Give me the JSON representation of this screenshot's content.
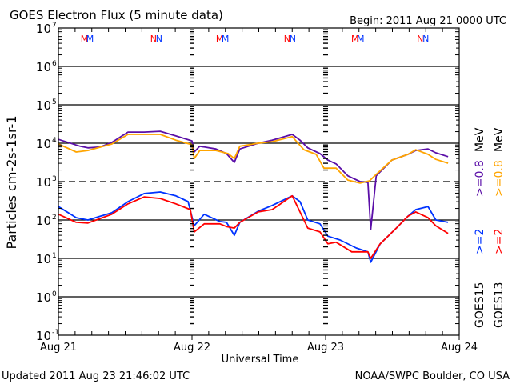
{
  "chart_data": {
    "type": "line",
    "title": "GOES Electron Flux (5 minute data)",
    "begin_label": "Begin: 2011 Aug 21 0000 UTC",
    "xlabel": "Universal Time",
    "ylabel": "Particles cm-2s-1sr-1",
    "y_scale": "log",
    "ylim_log10": [
      -1,
      7
    ],
    "y_ticks": [
      {
        "base": "10",
        "exp": "7"
      },
      {
        "base": "10",
        "exp": "6"
      },
      {
        "base": "10",
        "exp": "5"
      },
      {
        "base": "10",
        "exp": "4"
      },
      {
        "base": "10",
        "exp": "3"
      },
      {
        "base": "10",
        "exp": "2"
      },
      {
        "base": "10",
        "exp": "1"
      },
      {
        "base": "10",
        "exp": "0"
      },
      {
        "base": "10",
        "exp": "-1"
      }
    ],
    "x_range_hours": [
      0,
      72
    ],
    "x_ticks": [
      {
        "hour": 0,
        "label": "Aug 21"
      },
      {
        "hour": 24,
        "label": "Aug 22"
      },
      {
        "hour": 48,
        "label": "Aug 23"
      },
      {
        "hour": 72,
        "label": "Aug 24"
      }
    ],
    "threshold_log10": 3,
    "markers": [
      {
        "hour": 5,
        "label": "MM"
      },
      {
        "hour": 17.5,
        "label": "NN"
      },
      {
        "hour": 29.3,
        "label": "MM"
      },
      {
        "hour": 41.5,
        "label": "NN"
      },
      {
        "hour": 53.6,
        "label": "MM"
      },
      {
        "hour": 65.4,
        "label": "NN"
      }
    ],
    "series": [
      {
        "name": "GOES15 >=0.8 MeV",
        "color": "#5b0fa8",
        "hours": [
          0,
          3.9,
          5.3,
          7.5,
          9.6,
          12.5,
          15.4,
          18.3,
          21.1,
          24,
          24.4,
          25.4,
          28.3,
          30.2,
          31.6,
          32.6,
          35.9,
          38.4,
          42,
          43.4,
          44.8,
          47,
          48.4,
          49.9,
          52,
          54.2,
          55.6,
          56.1,
          57.1,
          59.9,
          62.8,
          64.2,
          66.4,
          67.8,
          70
        ],
        "log10_flux": [
          4.1,
          3.92,
          3.88,
          3.9,
          4.02,
          4.29,
          4.29,
          4.31,
          4.19,
          4.06,
          3.77,
          3.92,
          3.85,
          3.73,
          3.5,
          3.85,
          4.0,
          4.08,
          4.23,
          4.08,
          3.88,
          3.73,
          3.56,
          3.46,
          3.15,
          3.0,
          2.98,
          1.75,
          3.15,
          3.56,
          3.71,
          3.81,
          3.85,
          3.75,
          3.65
        ]
      },
      {
        "name": "GOES13 >=0.8 MeV",
        "color": "#ffa500",
        "hours": [
          0,
          3.2,
          5.3,
          9.6,
          12.5,
          18.3,
          21.1,
          24,
          24.4,
          25.4,
          28.3,
          30.5,
          31.6,
          32.6,
          35.9,
          38.4,
          42,
          44.1,
          46.3,
          47.7,
          49.9,
          52,
          54.2,
          55.9,
          57.1,
          59.9,
          62.8,
          64.2,
          66.4,
          67.8,
          70
        ],
        "log10_flux": [
          3.98,
          3.77,
          3.81,
          3.98,
          4.23,
          4.23,
          4.08,
          3.96,
          3.6,
          3.81,
          3.81,
          3.73,
          3.6,
          3.92,
          4.0,
          4.04,
          4.17,
          3.83,
          3.71,
          3.35,
          3.35,
          3.04,
          2.96,
          3.02,
          3.19,
          3.56,
          3.71,
          3.83,
          3.71,
          3.58,
          3.48
        ]
      },
      {
        "name": "GOES15 >=2 MeV",
        "color": "#0033ff",
        "hours": [
          0,
          3.2,
          5.3,
          9.6,
          12.5,
          15.4,
          18.3,
          21.1,
          23.3,
          24.4,
          26.2,
          29,
          30.2,
          31.6,
          32.6,
          35.9,
          38.4,
          42,
          43.4,
          44.8,
          47,
          48.4,
          50.6,
          53.5,
          55.6,
          56.1,
          57.8,
          60.7,
          62.8,
          64.2,
          66.4,
          67.8,
          70
        ],
        "log10_flux": [
          2.35,
          2.06,
          2.0,
          2.19,
          2.48,
          2.69,
          2.73,
          2.63,
          2.48,
          1.85,
          2.15,
          1.96,
          1.94,
          1.6,
          1.94,
          2.23,
          2.38,
          2.63,
          2.48,
          2.0,
          1.9,
          1.58,
          1.48,
          1.27,
          1.17,
          0.9,
          1.38,
          1.79,
          2.1,
          2.27,
          2.35,
          2.0,
          1.94
        ]
      },
      {
        "name": "GOES13 >=2 MeV",
        "color": "#ff0000",
        "hours": [
          0,
          3.2,
          5.3,
          9.6,
          12.5,
          15.4,
          18.3,
          21.1,
          23.7,
          24.4,
          26.2,
          29,
          30.2,
          31.6,
          32.6,
          35.9,
          38.4,
          42,
          43.4,
          44.8,
          47,
          48.4,
          49.9,
          52.7,
          55.6,
          56.1,
          57.8,
          60.7,
          62.8,
          64.2,
          66.4,
          67.8,
          70
        ],
        "log10_flux": [
          2.15,
          1.94,
          1.92,
          2.15,
          2.42,
          2.6,
          2.56,
          2.42,
          2.27,
          1.69,
          1.9,
          1.9,
          1.83,
          1.79,
          1.94,
          2.21,
          2.27,
          2.63,
          2.21,
          1.79,
          1.69,
          1.38,
          1.42,
          1.17,
          1.17,
          1.0,
          1.38,
          1.79,
          2.1,
          2.21,
          2.06,
          1.85,
          1.65
        ]
      }
    ],
    "legend": {
      "placement": "right",
      "goes15": {
        "label": "GOES15",
        "low": ">=2",
        "high": ">=0.8",
        "unit": "MeV"
      },
      "goes13": {
        "label": "GOES13",
        "low": ">=2",
        "high": ">=0.8",
        "unit": "MeV"
      }
    }
  },
  "footer": {
    "updated": "Updated 2011 Aug 23 21:46:02 UTC",
    "credit": "NOAA/SWPC Boulder, CO USA"
  }
}
